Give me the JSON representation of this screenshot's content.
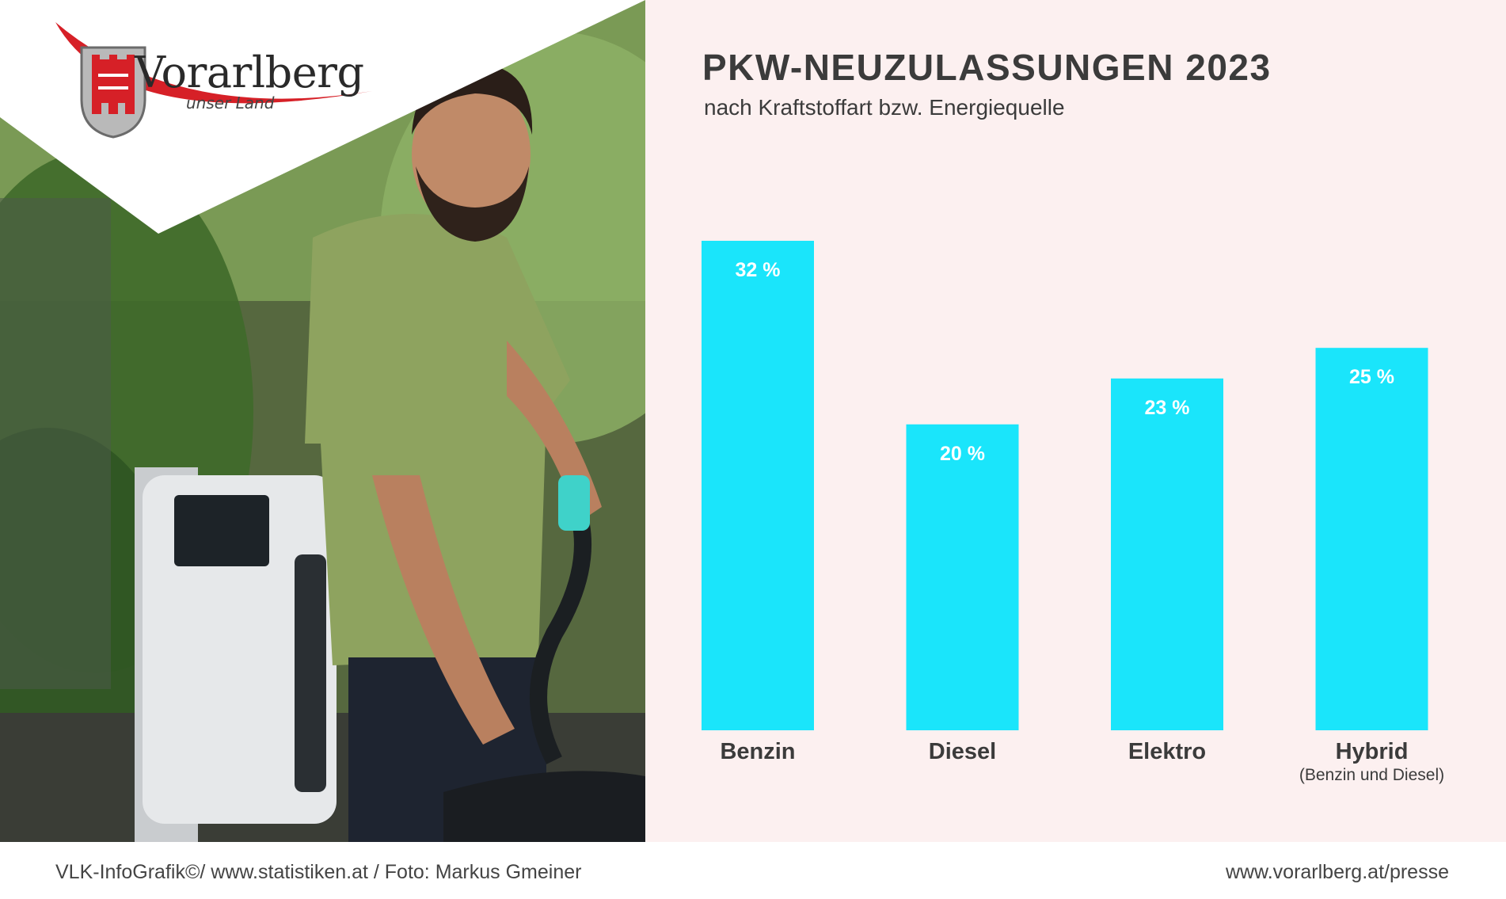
{
  "logo": {
    "name": "Vorarlberg",
    "tagline": "unser Land"
  },
  "chart_data": {
    "type": "bar",
    "title": "PKW-NEUZULASSUNGEN 2023",
    "subtitle": "nach Kraftstoffart bzw. Energiequelle",
    "categories": [
      "Benzin",
      "Diesel",
      "Elektro",
      "Hybrid"
    ],
    "category_notes": [
      "",
      "",
      "",
      "(Benzin und Diesel)"
    ],
    "values": [
      32,
      20,
      23,
      25
    ],
    "value_labels": [
      "32 %",
      "20 %",
      "23 %",
      "25 %"
    ],
    "unit": "%",
    "ylim": [
      0,
      40
    ],
    "bar_color": "#1ae5fb",
    "grid": false,
    "legend": "none"
  },
  "footer": {
    "left": "VLK-InfoGrafik©/ www.statistiken.at / Foto: Markus Gmeiner",
    "right": "www.vorarlberg.at/presse"
  },
  "colors": {
    "panel_background": "#fcf0f0",
    "logo_red": "#d62027",
    "text_dark": "#3b3b3b"
  }
}
